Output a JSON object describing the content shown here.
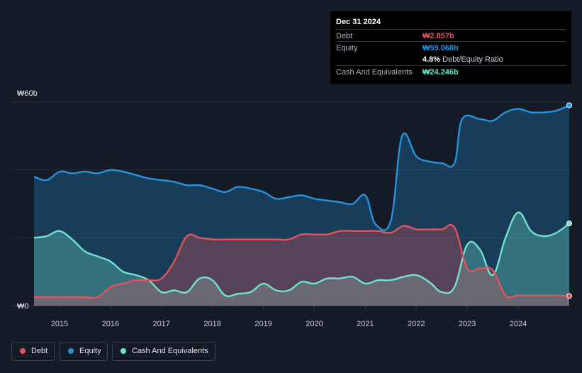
{
  "tooltip": {
    "date": "Dec 31 2024",
    "debt_label": "Debt",
    "debt_value": "₩2.857b",
    "equity_label": "Equity",
    "equity_value": "₩59.068b",
    "ratio_value": "4.8%",
    "ratio_label": "Debt/Equity Ratio",
    "cash_label": "Cash And Equivalents",
    "cash_value": "₩24.246b"
  },
  "legend": {
    "debt": "Debt",
    "equity": "Equity",
    "cash": "Cash And Equivalents"
  },
  "colors": {
    "debt": "#e5525b",
    "equity": "#2394df",
    "cash": "#6fe3d0",
    "background": "#151b26"
  },
  "chart_data": {
    "type": "area",
    "unit": "₩ billions",
    "y_ticks": [
      {
        "value": 60,
        "label": "₩60b"
      },
      {
        "value": 0,
        "label": "₩0"
      }
    ],
    "ylim": [
      0,
      60
    ],
    "xlim": [
      2014.5,
      2025.0
    ],
    "x_ticks": [
      "2015",
      "2016",
      "2017",
      "2018",
      "2019",
      "2020",
      "2021",
      "2022",
      "2023",
      "2024"
    ],
    "grid": true,
    "legend_position": "bottom-left",
    "series": [
      {
        "name": "Equity",
        "points": [
          [
            2014.5,
            38.0
          ],
          [
            2014.75,
            37.0
          ],
          [
            2015.0,
            39.5
          ],
          [
            2015.25,
            39.0
          ],
          [
            2015.5,
            39.5
          ],
          [
            2015.75,
            39.0
          ],
          [
            2016.0,
            40.0
          ],
          [
            2016.25,
            39.5
          ],
          [
            2016.5,
            38.5
          ],
          [
            2016.75,
            37.5
          ],
          [
            2017.0,
            37.0
          ],
          [
            2017.25,
            36.5
          ],
          [
            2017.5,
            35.5
          ],
          [
            2017.75,
            35.5
          ],
          [
            2018.0,
            34.5
          ],
          [
            2018.25,
            33.5
          ],
          [
            2018.5,
            35.0
          ],
          [
            2018.75,
            34.5
          ],
          [
            2019.0,
            33.5
          ],
          [
            2019.25,
            31.5
          ],
          [
            2019.5,
            32.0
          ],
          [
            2019.75,
            32.5
          ],
          [
            2020.0,
            31.5
          ],
          [
            2020.25,
            31.0
          ],
          [
            2020.5,
            30.5
          ],
          [
            2020.75,
            30.0
          ],
          [
            2021.0,
            32.5
          ],
          [
            2021.2,
            24.0
          ],
          [
            2021.5,
            25.0
          ],
          [
            2021.72,
            50.0
          ],
          [
            2022.0,
            44.0
          ],
          [
            2022.25,
            42.5
          ],
          [
            2022.5,
            42.0
          ],
          [
            2022.75,
            42.0
          ],
          [
            2022.9,
            55.0
          ],
          [
            2023.25,
            55.0
          ],
          [
            2023.5,
            54.5
          ],
          [
            2023.75,
            57.0
          ],
          [
            2024.0,
            58.0
          ],
          [
            2024.25,
            57.0
          ],
          [
            2024.5,
            57.0
          ],
          [
            2024.75,
            57.5
          ],
          [
            2025.0,
            59.068
          ]
        ]
      },
      {
        "name": "Cash And Equivalents",
        "points": [
          [
            2014.5,
            20.0
          ],
          [
            2014.75,
            20.5
          ],
          [
            2015.0,
            22.0
          ],
          [
            2015.25,
            19.5
          ],
          [
            2015.5,
            16.0
          ],
          [
            2015.75,
            14.5
          ],
          [
            2016.0,
            13.0
          ],
          [
            2016.25,
            10.0
          ],
          [
            2016.5,
            9.0
          ],
          [
            2016.75,
            7.5
          ],
          [
            2017.0,
            4.0
          ],
          [
            2017.25,
            4.5
          ],
          [
            2017.5,
            4.0
          ],
          [
            2017.75,
            8.0
          ],
          [
            2018.0,
            7.5
          ],
          [
            2018.25,
            3.0
          ],
          [
            2018.5,
            3.5
          ],
          [
            2018.75,
            4.0
          ],
          [
            2019.0,
            6.5
          ],
          [
            2019.25,
            4.5
          ],
          [
            2019.5,
            4.5
          ],
          [
            2019.75,
            7.0
          ],
          [
            2020.0,
            6.5
          ],
          [
            2020.25,
            8.0
          ],
          [
            2020.5,
            8.0
          ],
          [
            2020.75,
            8.5
          ],
          [
            2021.0,
            6.5
          ],
          [
            2021.25,
            7.5
          ],
          [
            2021.5,
            7.5
          ],
          [
            2021.75,
            8.5
          ],
          [
            2022.0,
            9.0
          ],
          [
            2022.25,
            7.0
          ],
          [
            2022.5,
            4.0
          ],
          [
            2022.75,
            5.5
          ],
          [
            2023.0,
            18.0
          ],
          [
            2023.25,
            16.5
          ],
          [
            2023.5,
            9.0
          ],
          [
            2023.75,
            20.0
          ],
          [
            2024.0,
            27.5
          ],
          [
            2024.25,
            22.0
          ],
          [
            2024.5,
            20.5
          ],
          [
            2024.75,
            21.5
          ],
          [
            2025.0,
            24.246
          ]
        ]
      },
      {
        "name": "Debt",
        "points": [
          [
            2014.5,
            2.5
          ],
          [
            2014.75,
            2.5
          ],
          [
            2015.0,
            2.5
          ],
          [
            2015.25,
            2.5
          ],
          [
            2015.5,
            2.5
          ],
          [
            2015.75,
            2.5
          ],
          [
            2016.0,
            5.5
          ],
          [
            2016.25,
            6.5
          ],
          [
            2016.5,
            7.5
          ],
          [
            2016.75,
            7.5
          ],
          [
            2017.0,
            8.0
          ],
          [
            2017.25,
            13.0
          ],
          [
            2017.5,
            20.5
          ],
          [
            2017.75,
            20.0
          ],
          [
            2018.0,
            19.5
          ],
          [
            2018.25,
            19.5
          ],
          [
            2018.5,
            19.5
          ],
          [
            2018.75,
            19.5
          ],
          [
            2019.0,
            19.5
          ],
          [
            2019.25,
            19.5
          ],
          [
            2019.5,
            19.5
          ],
          [
            2019.75,
            21.0
          ],
          [
            2020.0,
            21.0
          ],
          [
            2020.25,
            21.0
          ],
          [
            2020.5,
            22.0
          ],
          [
            2020.75,
            22.0
          ],
          [
            2021.0,
            22.0
          ],
          [
            2021.25,
            22.0
          ],
          [
            2021.5,
            21.5
          ],
          [
            2021.75,
            23.5
          ],
          [
            2022.0,
            22.5
          ],
          [
            2022.25,
            22.5
          ],
          [
            2022.5,
            22.5
          ],
          [
            2022.75,
            23.0
          ],
          [
            2023.0,
            11.0
          ],
          [
            2023.25,
            11.0
          ],
          [
            2023.5,
            10.5
          ],
          [
            2023.75,
            3.0
          ],
          [
            2024.0,
            3.0
          ],
          [
            2024.25,
            3.0
          ],
          [
            2024.5,
            3.0
          ],
          [
            2024.75,
            3.0
          ],
          [
            2025.0,
            2.857
          ]
        ]
      }
    ]
  }
}
